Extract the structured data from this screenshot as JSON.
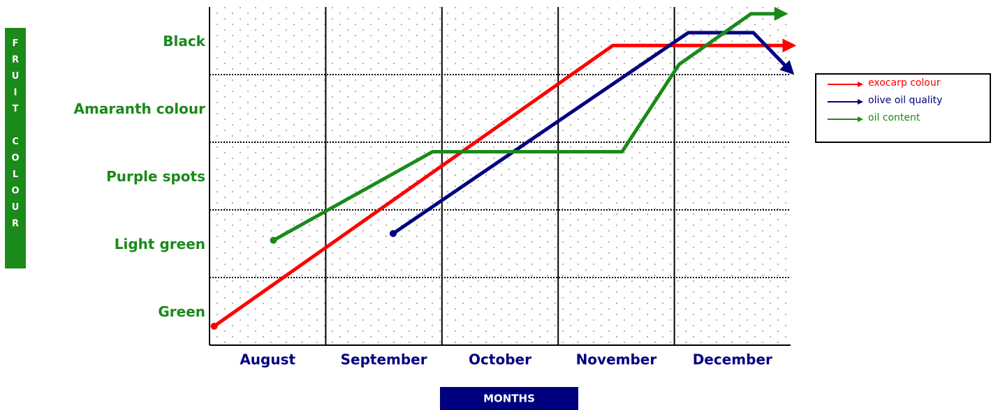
{
  "chart_data": {
    "type": "line",
    "y_label": "FRUIT COLOUR",
    "x_label": "MONTHS",
    "xlim": [
      0,
      5
    ],
    "xticks": [
      {
        "value": 0.5,
        "label": "August"
      },
      {
        "value": 1.5,
        "label": "September"
      },
      {
        "value": 2.5,
        "label": "October"
      },
      {
        "value": 3.5,
        "label": "November"
      },
      {
        "value": 4.5,
        "label": "December"
      }
    ],
    "xgrid": [
      1,
      2,
      3,
      4
    ],
    "ylim": [
      0,
      5
    ],
    "yticks": [
      {
        "value": 0.5,
        "label": "Green"
      },
      {
        "value": 1.5,
        "label": "Light green"
      },
      {
        "value": 2.5,
        "label": "Purple spots"
      },
      {
        "value": 3.5,
        "label": "Amaranth colour"
      },
      {
        "value": 4.5,
        "label": "Black"
      }
    ],
    "ygrid": [
      1,
      2,
      3,
      4
    ],
    "legend": "right",
    "series": [
      {
        "name": "exocarp colour",
        "color": "#ff0000",
        "x": [
          0.04,
          3.47,
          4.99
        ],
        "values": [
          0.28,
          4.43,
          4.43
        ]
      },
      {
        "name": "olive oil quality",
        "color": "#00007f",
        "x": [
          1.58,
          4.12,
          4.68,
          4.99
        ],
        "values": [
          1.65,
          4.62,
          4.62,
          4.07
        ]
      },
      {
        "name": "oil content",
        "color": "#1a8a1a",
        "x": [
          0.55,
          1.92,
          3.55,
          4.04,
          4.66,
          4.92
        ],
        "values": [
          1.55,
          2.86,
          2.86,
          4.15,
          4.9,
          4.9
        ]
      }
    ]
  }
}
